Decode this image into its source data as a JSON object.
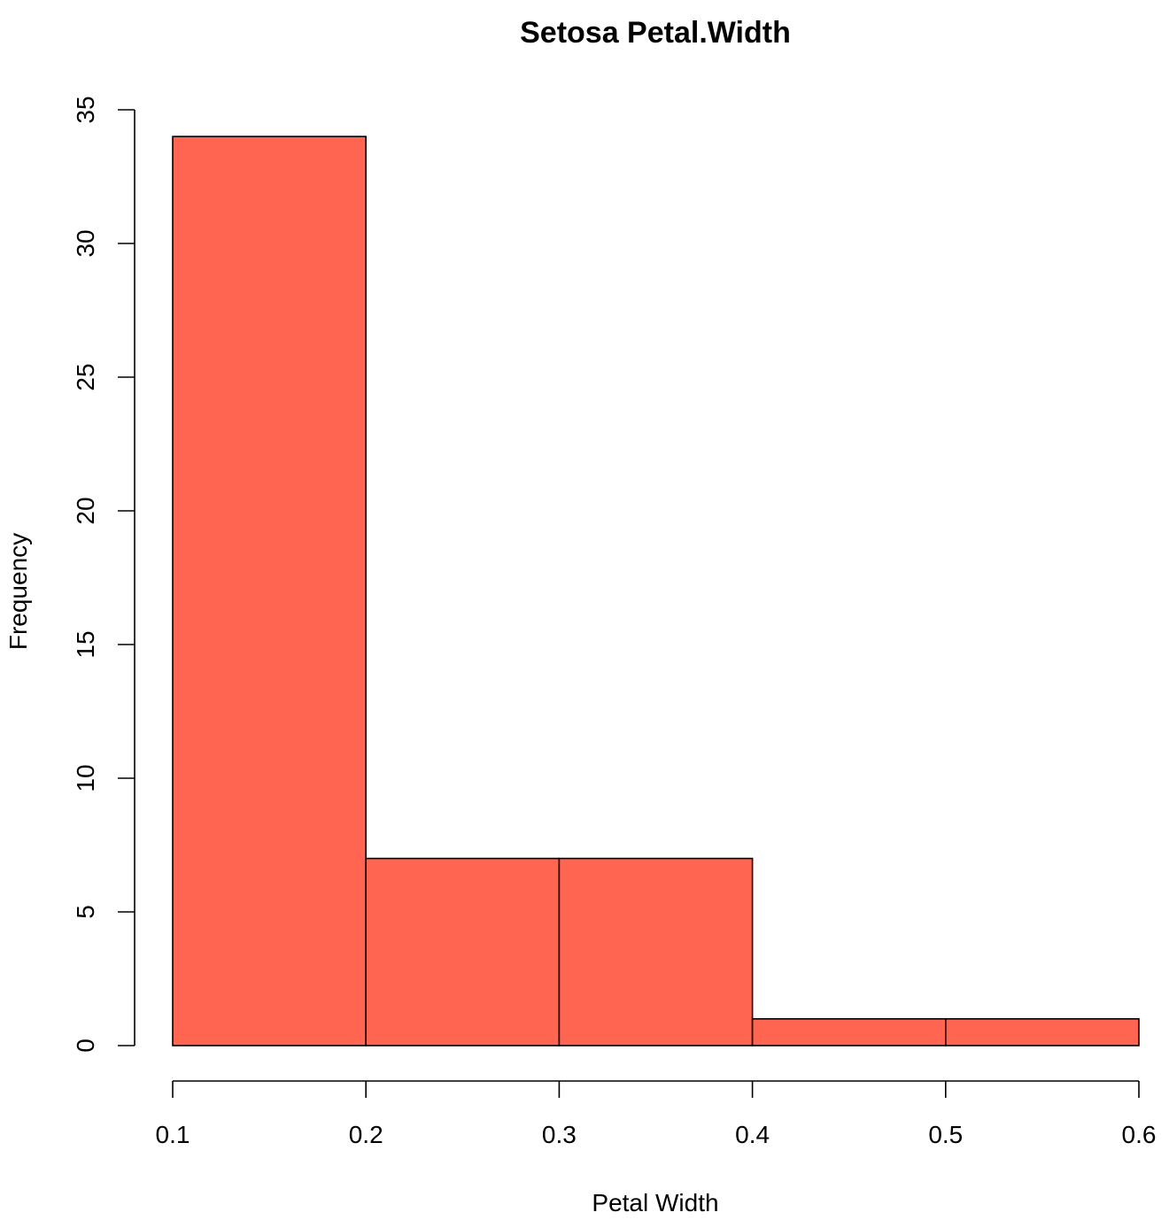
{
  "chart_data": {
    "type": "histogram",
    "title": "Setosa Petal.Width",
    "xlabel": "Petal Width",
    "ylabel": "Frequency",
    "bins": [
      {
        "from": 0.1,
        "to": 0.2,
        "value": 34
      },
      {
        "from": 0.2,
        "to": 0.3,
        "value": 7
      },
      {
        "from": 0.3,
        "to": 0.4,
        "value": 7
      },
      {
        "from": 0.4,
        "to": 0.5,
        "value": 1
      },
      {
        "from": 0.5,
        "to": 0.6,
        "value": 1
      }
    ],
    "xlim": [
      0.1,
      0.6
    ],
    "ylim": [
      0,
      35
    ],
    "x_ticks": [
      "0.1",
      "0.2",
      "0.3",
      "0.4",
      "0.5",
      "0.6"
    ],
    "y_ticks": [
      "0",
      "5",
      "10",
      "15",
      "20",
      "25",
      "30",
      "35"
    ],
    "bar_color": "#FF6550",
    "grid": false,
    "legend": "none"
  }
}
